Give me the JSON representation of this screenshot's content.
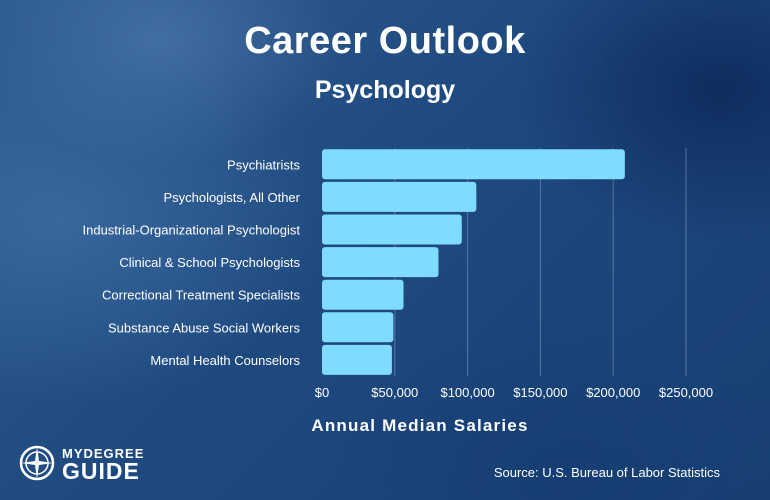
{
  "header": {
    "title": "Career Outlook",
    "subtitle": "Psychology"
  },
  "logo": {
    "top": "MYDEGREE",
    "bottom": "GUIDE",
    "icon": "compass-icon"
  },
  "footer": {
    "source": "Source: U.S. Bureau of Labor Statistics"
  },
  "colors": {
    "bar": "#7fdcff",
    "grid": "#6d8fb6",
    "text": "#ffffff"
  },
  "chart_data": {
    "type": "bar",
    "orientation": "horizontal",
    "categories": [
      "Psychiatrists",
      "Psychologists, All Other",
      "Industrial-Organizational Psychologist",
      "Clinical & School Psychologists",
      "Correctional Treatment Specialists",
      "Substance Abuse Social Workers",
      "Mental Health Counselors"
    ],
    "values": [
      208000,
      106000,
      96000,
      80000,
      56000,
      49000,
      48000
    ],
    "xlabel": "Annual Median Salaries",
    "xlim": [
      0,
      250000
    ],
    "ticks": [
      0,
      50000,
      100000,
      150000,
      200000,
      250000
    ],
    "tick_labels": [
      "$0",
      "$50,000",
      "$100,000",
      "$150,000",
      "$200,000",
      "$250,000"
    ],
    "grid": true
  }
}
